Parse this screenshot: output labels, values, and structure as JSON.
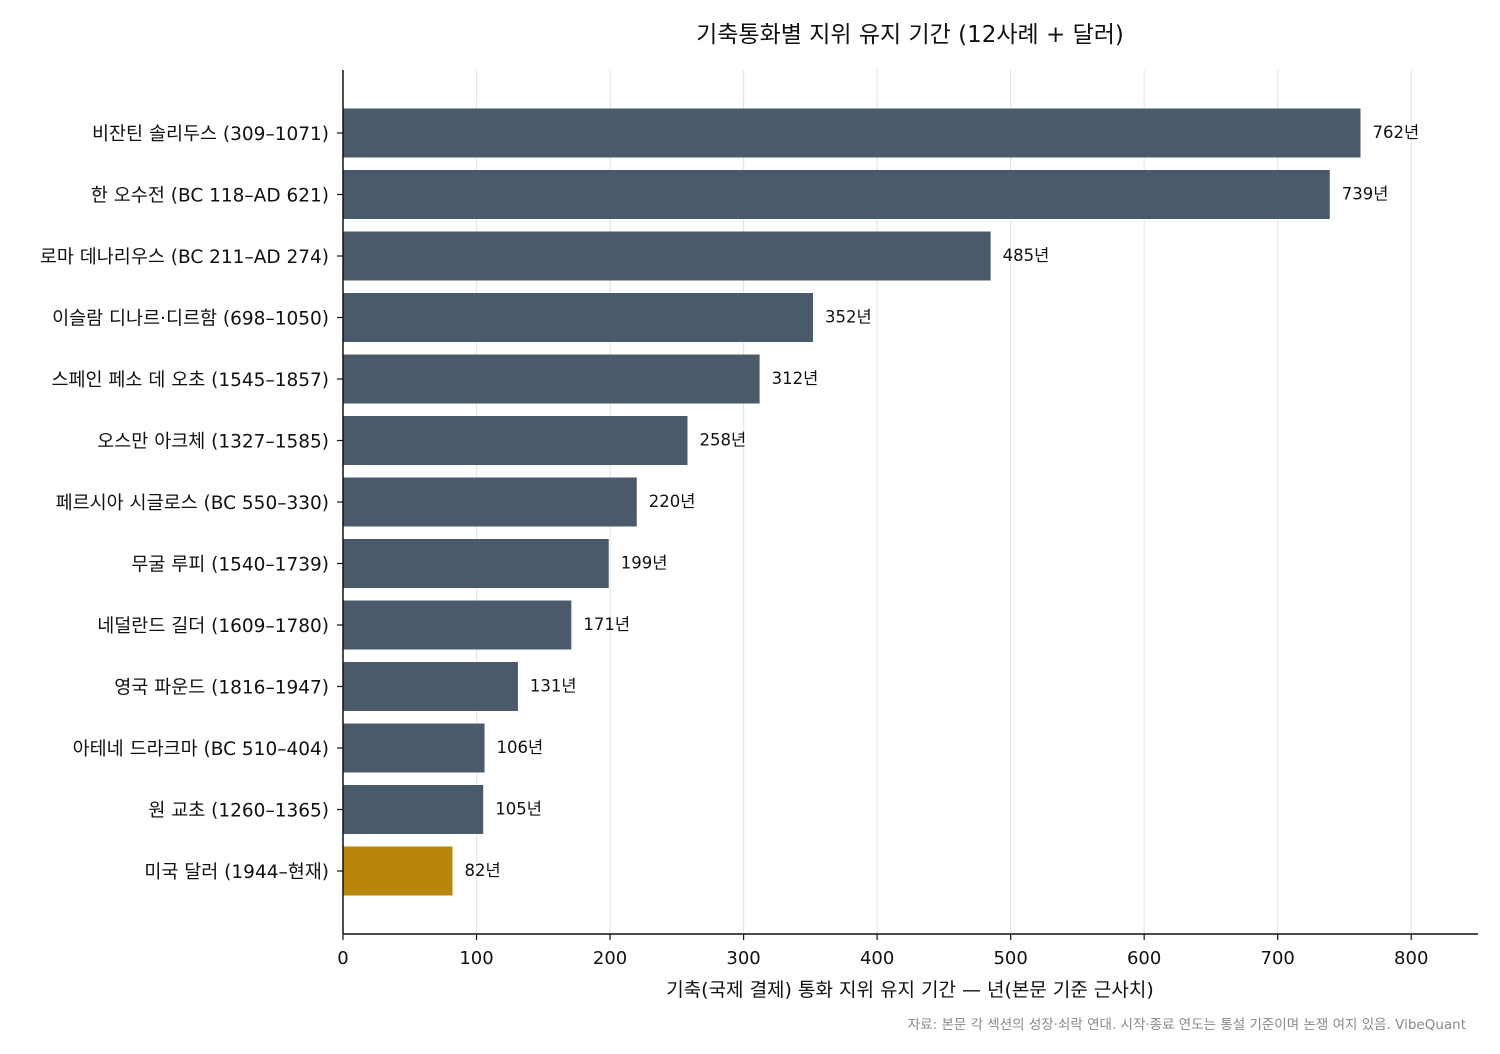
{
  "chart_data": {
    "type": "bar",
    "orientation": "horizontal",
    "title": "기축통화별 지위 유지 기간 (12사례 + 달러)",
    "xlabel": "기축(국제 결제) 통화 지위 유지 기간 — 년(본문 기준 근사치)",
    "ylabel": "",
    "xlim": [
      0,
      850
    ],
    "xticks": [
      0,
      100,
      200,
      300,
      400,
      500,
      600,
      700,
      800
    ],
    "grid": "vertical",
    "value_suffix": "년",
    "categories": [
      "비잔틴 솔리두스  (309–1071)",
      "한 오수전  (BC 118–AD 621)",
      "로마 데나리우스  (BC 211–AD 274)",
      "이슬람 디나르·디르함  (698–1050)",
      "스페인 페소 데 오초  (1545–1857)",
      "오스만 아크체  (1327–1585)",
      "페르시아 시글로스  (BC 550–330)",
      "무굴 루피  (1540–1739)",
      "네덜란드 길더  (1609–1780)",
      "영국 파운드  (1816–1947)",
      "아테네 드라크마  (BC 510–404)",
      "원 교초  (1260–1365)",
      "미국 달러  (1944–현재)"
    ],
    "values": [
      762,
      739,
      485,
      352,
      312,
      258,
      220,
      199,
      171,
      131,
      106,
      105,
      82
    ],
    "colors": [
      "#4a5a6a",
      "#4a5a6a",
      "#4a5a6a",
      "#4a5a6a",
      "#4a5a6a",
      "#4a5a6a",
      "#4a5a6a",
      "#4a5a6a",
      "#4a5a6a",
      "#4a5a6a",
      "#4a5a6a",
      "#4a5a6a",
      "#b8860b"
    ],
    "source_note": "자료: 본문 각 섹션의 성장·쇠락 연대. 시작·종료 연도는 통설 기준이며 논쟁 여지 있음. VibeQuant"
  }
}
